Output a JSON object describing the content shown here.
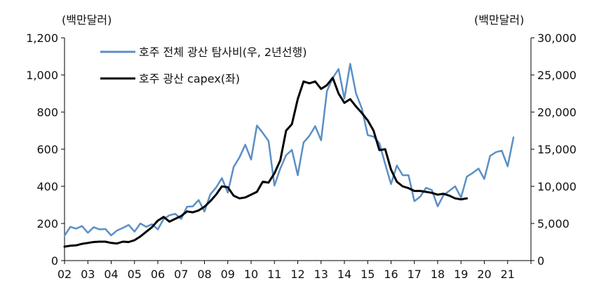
{
  "chart_data": {
    "type": "line",
    "left_unit": "(백만달러)",
    "right_unit": "(백만달러)",
    "left_axis": {
      "ylim": [
        0,
        1200
      ],
      "ticks": [
        "0",
        "200",
        "400",
        "600",
        "800",
        "1,000",
        "1,200"
      ],
      "values": [
        0,
        200,
        400,
        600,
        800,
        1000,
        1200
      ]
    },
    "right_axis": {
      "ylim": [
        0,
        30000
      ],
      "ticks": [
        "0",
        "5,000",
        "10,000",
        "15,000",
        "20,000",
        "25,000",
        "30,000"
      ],
      "values": [
        0,
        5000,
        10000,
        15000,
        20000,
        25000,
        30000
      ]
    },
    "x_axis": {
      "range": [
        2002,
        2022
      ],
      "ticks": [
        "02",
        "03",
        "04",
        "05",
        "06",
        "07",
        "08",
        "09",
        "10",
        "11",
        "12",
        "13",
        "14",
        "15",
        "16",
        "17",
        "18",
        "19",
        "20",
        "21"
      ],
      "tick_values": [
        2002,
        2003,
        2004,
        2005,
        2006,
        2007,
        2008,
        2009,
        2010,
        2011,
        2012,
        2013,
        2014,
        2015,
        2016,
        2017,
        2018,
        2019,
        2020,
        2021
      ]
    },
    "series": [
      {
        "name": "호주 전체 광산 탐사비(우, 2년선행)",
        "axis": "right",
        "color": "#5b8fc5",
        "width": 2.5,
        "x": [
          2002.0,
          2002.25,
          2002.5,
          2002.75,
          2003.0,
          2003.25,
          2003.5,
          2003.75,
          2004.0,
          2004.25,
          2004.5,
          2004.75,
          2005.0,
          2005.25,
          2005.5,
          2005.75,
          2006.0,
          2006.25,
          2006.5,
          2006.75,
          2007.0,
          2007.25,
          2007.5,
          2007.75,
          2008.0,
          2008.25,
          2008.5,
          2008.75,
          2009.0,
          2009.25,
          2009.5,
          2009.75,
          2010.0,
          2010.25,
          2010.5,
          2010.75,
          2011.0,
          2011.25,
          2011.5,
          2011.75,
          2012.0,
          2012.25,
          2012.5,
          2012.75,
          2013.0,
          2013.25,
          2013.5,
          2013.75,
          2014.0,
          2014.25,
          2014.5,
          2014.75,
          2015.0,
          2015.25,
          2015.5,
          2015.75,
          2016.0,
          2016.25,
          2016.5,
          2016.75,
          2017.0,
          2017.25,
          2017.5,
          2017.75,
          2018.0,
          2018.25,
          2018.5,
          2018.75,
          2019.0,
          2019.25,
          2019.5,
          2019.75,
          2020.0,
          2020.25,
          2020.5,
          2020.75,
          2021.0,
          2021.25
        ],
        "values": [
          3350,
          4550,
          4300,
          4650,
          3750,
          4500,
          4200,
          4250,
          3400,
          4050,
          4400,
          4800,
          3900,
          5000,
          4550,
          4900,
          4200,
          5600,
          6100,
          6300,
          5600,
          7250,
          7300,
          8150,
          6600,
          8900,
          9850,
          11100,
          9150,
          12600,
          13900,
          15600,
          13600,
          18200,
          17200,
          16100,
          10100,
          12400,
          14200,
          14900,
          11500,
          15900,
          16800,
          18100,
          16200,
          22800,
          24600,
          25800,
          21800,
          26500,
          22500,
          20500,
          16900,
          16700,
          15800,
          13000,
          10300,
          12800,
          11500,
          11500,
          8000,
          8600,
          9800,
          9500,
          7300,
          8800,
          9400,
          10000,
          8500,
          11300,
          11800,
          12400,
          11000,
          14100,
          14600,
          14800,
          12700,
          16600
        ]
      },
      {
        "name": "호주 광산 capex(좌)",
        "axis": "left",
        "color": "#000000",
        "width": 3,
        "x": [
          2002.0,
          2002.25,
          2002.5,
          2002.75,
          2003.0,
          2003.25,
          2003.5,
          2003.75,
          2004.0,
          2004.25,
          2004.5,
          2004.75,
          2005.0,
          2005.25,
          2005.5,
          2005.75,
          2006.0,
          2006.25,
          2006.5,
          2006.75,
          2007.0,
          2007.25,
          2007.5,
          2007.75,
          2008.0,
          2008.25,
          2008.5,
          2008.75,
          2009.0,
          2009.25,
          2009.5,
          2009.75,
          2010.0,
          2010.25,
          2010.5,
          2010.75,
          2011.0,
          2011.25,
          2011.5,
          2011.75,
          2012.0,
          2012.25,
          2012.5,
          2012.75,
          2013.0,
          2013.25,
          2013.5,
          2013.75,
          2014.0,
          2014.25,
          2014.5,
          2014.75,
          2015.0,
          2015.25,
          2015.5,
          2015.75,
          2016.0,
          2016.25,
          2016.5,
          2016.75,
          2017.0,
          2017.25,
          2017.5,
          2017.75,
          2018.0,
          2018.25,
          2018.5,
          2018.75,
          2019.0,
          2019.25
        ],
        "values": [
          75,
          80,
          82,
          90,
          95,
          100,
          102,
          102,
          95,
          92,
          102,
          100,
          110,
          130,
          155,
          180,
          215,
          235,
          210,
          225,
          240,
          265,
          260,
          270,
          290,
          320,
          355,
          400,
          395,
          350,
          335,
          340,
          355,
          370,
          425,
          420,
          470,
          540,
          700,
          735,
          870,
          965,
          955,
          965,
          925,
          945,
          985,
          900,
          850,
          870,
          830,
          795,
          755,
          700,
          595,
          600,
          490,
          425,
          400,
          390,
          375,
          375,
          370,
          365,
          355,
          360,
          350,
          335,
          330,
          335
        ]
      }
    ]
  }
}
